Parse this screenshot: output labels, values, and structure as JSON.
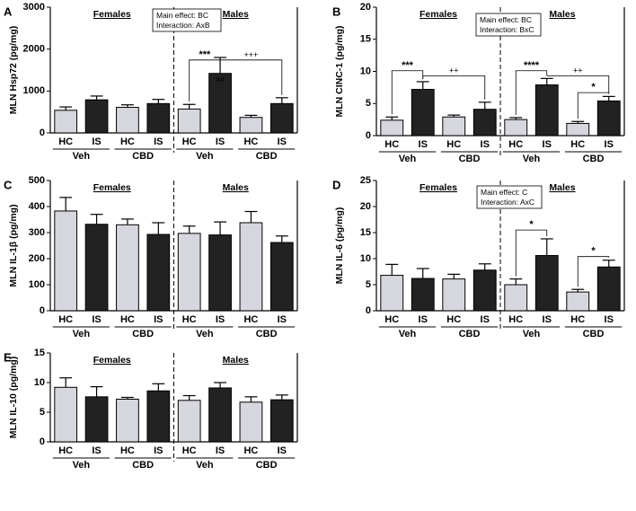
{
  "chart_data": [
    {
      "panel": "A",
      "type": "bar",
      "ylabel": "MLN Hsp72 (pg/mg)",
      "ylim": [
        0,
        3000
      ],
      "yticks": [
        "0",
        "1000",
        "2000",
        "3000"
      ],
      "groups": [
        "Females",
        "Males"
      ],
      "categories": [
        "HC",
        "IS",
        "HC",
        "IS",
        "HC",
        "IS",
        "HC",
        "IS"
      ],
      "treatments": [
        "Veh",
        "CBD",
        "Veh",
        "CBD"
      ],
      "values": [
        540,
        790,
        610,
        700,
        570,
        1420,
        370,
        700
      ],
      "errors": [
        80,
        90,
        60,
        100,
        110,
        380,
        50,
        140
      ],
      "stats_box": [
        "Main effect: BC",
        "Interaction: AxB"
      ],
      "annotations": [
        {
          "text": "***",
          "from": 4,
          "to": 5,
          "y": 1740
        },
        {
          "text": "##",
          "bar": 5,
          "y": 1260
        },
        {
          "text": "+++",
          "from": 5,
          "to": 7,
          "y": 1740
        }
      ]
    },
    {
      "panel": "B",
      "type": "bar",
      "ylabel": "MLN CINC-1 (pg/mg)",
      "ylim": [
        0,
        20
      ],
      "yticks": [
        "0",
        "5",
        "10",
        "15",
        "20"
      ],
      "groups": [
        "Females",
        "Males"
      ],
      "categories": [
        "HC",
        "IS",
        "HC",
        "IS",
        "HC",
        "IS",
        "HC",
        "IS"
      ],
      "treatments": [
        "Veh",
        "CBD",
        "Veh",
        "CBD"
      ],
      "values": [
        2.4,
        7.2,
        2.9,
        4.1,
        2.5,
        7.9,
        1.9,
        5.4
      ],
      "errors": [
        0.5,
        1.2,
        0.3,
        1.1,
        0.3,
        1.0,
        0.3,
        0.7
      ],
      "stats_box": [
        "Main effect: BC",
        "Interaction: BxC"
      ],
      "annotations": [
        {
          "text": "***",
          "from": 0,
          "to": 1,
          "y": 10.1
        },
        {
          "text": "++",
          "from": 1,
          "to": 3,
          "y": 9.3
        },
        {
          "text": "****",
          "from": 4,
          "to": 5,
          "y": 10.1
        },
        {
          "text": "++",
          "from": 5,
          "to": 7,
          "y": 9.3
        },
        {
          "text": "*",
          "from": 6,
          "to": 7,
          "y": 6.7
        }
      ]
    },
    {
      "panel": "C",
      "type": "bar",
      "ylabel": "MLN IL-1β (pg/mg)",
      "ylim": [
        0,
        500
      ],
      "yticks": [
        "0",
        "100",
        "200",
        "300",
        "400",
        "500"
      ],
      "groups": [
        "Females",
        "Males"
      ],
      "categories": [
        "HC",
        "IS",
        "HC",
        "IS",
        "HC",
        "IS",
        "HC",
        "IS"
      ],
      "treatments": [
        "Veh",
        "CBD",
        "Veh",
        "CBD"
      ],
      "values": [
        383,
        332,
        330,
        293,
        297,
        291,
        338,
        262
      ],
      "errors": [
        52,
        38,
        22,
        45,
        28,
        50,
        43,
        25
      ],
      "stats_box": [],
      "annotations": []
    },
    {
      "panel": "D",
      "type": "bar",
      "ylabel": "MLN IL-6 (pg/mg)",
      "ylim": [
        0,
        25
      ],
      "yticks": [
        "0",
        "5",
        "10",
        "15",
        "20",
        "25"
      ],
      "groups": [
        "Females",
        "Males"
      ],
      "categories": [
        "HC",
        "IS",
        "HC",
        "IS",
        "HC",
        "IS",
        "HC",
        "IS"
      ],
      "treatments": [
        "Veh",
        "CBD",
        "Veh",
        "CBD"
      ],
      "values": [
        6.8,
        6.2,
        6.1,
        7.8,
        5.0,
        10.6,
        3.6,
        8.4
      ],
      "errors": [
        2.1,
        1.9,
        0.9,
        1.2,
        1.1,
        3.2,
        0.5,
        1.3
      ],
      "stats_box": [
        "Main effect: C",
        "Interaction: AxC"
      ],
      "annotations": [
        {
          "text": "*",
          "from": 4,
          "to": 5,
          "y": 15.5
        },
        {
          "text": "*",
          "from": 6,
          "to": 7,
          "y": 10.4
        }
      ]
    },
    {
      "panel": "E",
      "type": "bar",
      "ylabel": "MLN IL-10 (pg/mg)",
      "ylim": [
        0,
        15
      ],
      "yticks": [
        "0",
        "5",
        "10",
        "15"
      ],
      "groups": [
        "Females",
        "Males"
      ],
      "categories": [
        "HC",
        "IS",
        "HC",
        "IS",
        "HC",
        "IS",
        "HC",
        "IS"
      ],
      "treatments": [
        "Veh",
        "CBD",
        "Veh",
        "CBD"
      ],
      "values": [
        9.2,
        7.6,
        7.2,
        8.6,
        7.0,
        9.1,
        6.7,
        7.1
      ],
      "errors": [
        1.6,
        1.7,
        0.3,
        1.2,
        0.8,
        0.9,
        0.9,
        0.8
      ],
      "stats_box": [],
      "annotations": []
    }
  ],
  "colors": {
    "hc_bar": "#d6d6de",
    "is_bar": "#222222",
    "stroke": "#000000"
  }
}
